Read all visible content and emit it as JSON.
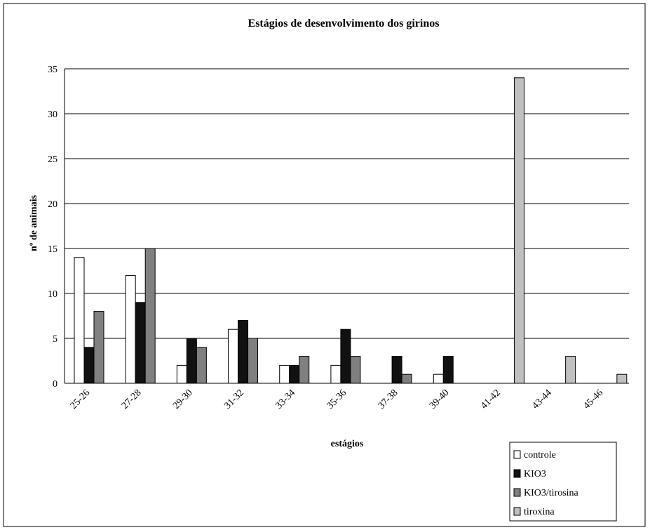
{
  "chart_data": {
    "type": "bar",
    "title": "Estágios de desenvolvimento dos girinos",
    "x_label": "estágios",
    "y_label": "nº de animais",
    "categories": [
      "25-26",
      "27-28",
      "29-30",
      "31-32",
      "33-34",
      "35-36",
      "37-38",
      "39-40",
      "41-42",
      "43-44",
      "45-46"
    ],
    "series": [
      {
        "name": "controle",
        "color": "#ffffff",
        "values": [
          14,
          12,
          2,
          6,
          2,
          2,
          0,
          1,
          0,
          0,
          0
        ]
      },
      {
        "name": "KIO3",
        "color": "#111111",
        "values": [
          4,
          9,
          5,
          7,
          2,
          6,
          3,
          3,
          0,
          0,
          0
        ]
      },
      {
        "name": "KIO3/tirosina",
        "color": "#808080",
        "values": [
          8,
          15,
          4,
          5,
          3,
          3,
          1,
          0,
          0,
          0,
          0
        ]
      },
      {
        "name": "tiroxina",
        "color": "#c0c0c0",
        "values": [
          0,
          0,
          0,
          0,
          0,
          0,
          0,
          0,
          34,
          3,
          1
        ]
      }
    ],
    "ylim": [
      0,
      35
    ],
    "yticks": [
      0,
      5,
      10,
      15,
      20,
      25,
      30,
      35
    ],
    "grid": true,
    "legend": "bottom-right"
  }
}
